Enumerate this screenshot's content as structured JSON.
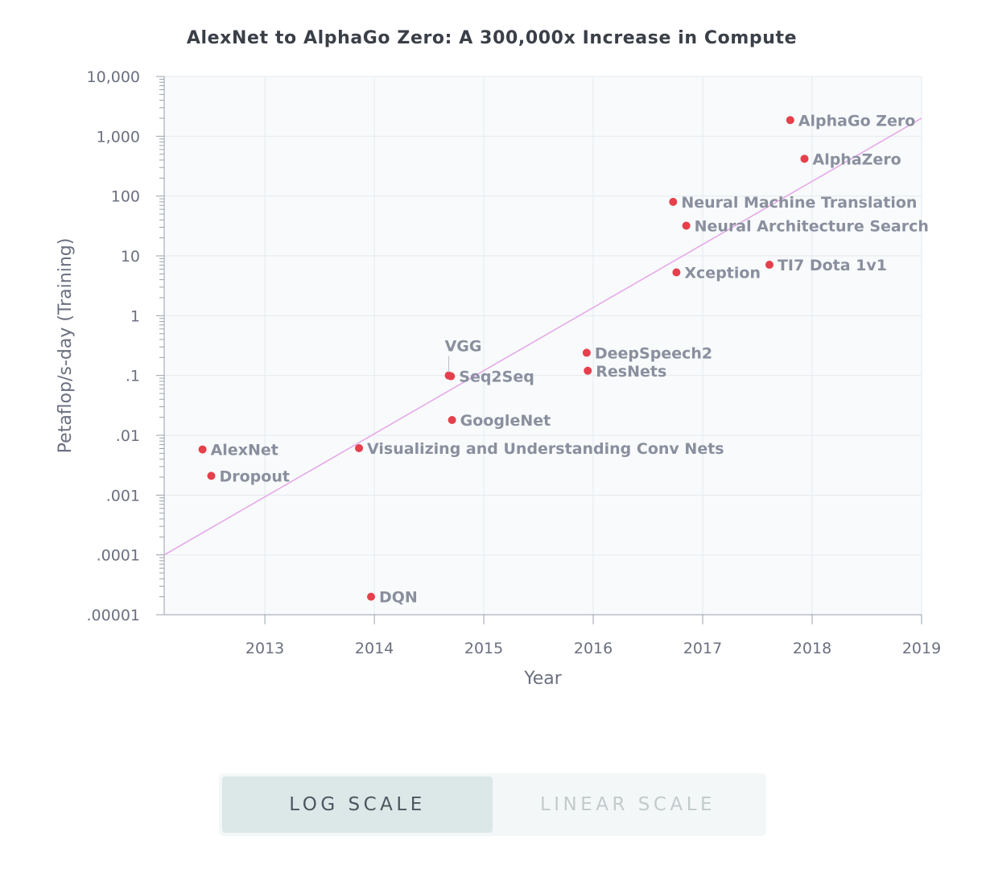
{
  "chart_data": {
    "type": "scatter",
    "title": "AlexNet to AlphaGo Zero: A 300,000x Increase in Compute",
    "xlabel": "Year",
    "ylabel": "Petaflop/s-day (Training)",
    "xlim": [
      2012.08,
      2019.0
    ],
    "ylim": [
      1e-05,
      10000
    ],
    "yscale": "log",
    "grid": true,
    "x_ticks": [
      {
        "value": 2013,
        "label": "2013"
      },
      {
        "value": 2014,
        "label": "2014"
      },
      {
        "value": 2015,
        "label": "2015"
      },
      {
        "value": 2016,
        "label": "2016"
      },
      {
        "value": 2017,
        "label": "2017"
      },
      {
        "value": 2018,
        "label": "2018"
      },
      {
        "value": 2019,
        "label": "2019"
      }
    ],
    "y_ticks": [
      {
        "value": 10000,
        "label": "10,000"
      },
      {
        "value": 1000,
        "label": "1,000"
      },
      {
        "value": 100,
        "label": "100"
      },
      {
        "value": 10,
        "label": "10"
      },
      {
        "value": 1,
        "label": "1"
      },
      {
        "value": 0.1,
        "label": ".1"
      },
      {
        "value": 0.01,
        "label": ".01"
      },
      {
        "value": 0.001,
        "label": ".001"
      },
      {
        "value": 0.0001,
        "label": ".0001"
      },
      {
        "value": 1e-05,
        "label": ".00001"
      }
    ],
    "points": [
      {
        "label": "AlexNet",
        "x": 2012.43,
        "y": 0.0058
      },
      {
        "label": "Dropout",
        "x": 2012.51,
        "y": 0.0021
      },
      {
        "label": "DQN",
        "x": 2013.97,
        "y": 2e-05
      },
      {
        "label": "Visualizing and Understanding Conv Nets",
        "x": 2013.86,
        "y": 0.0061
      },
      {
        "label": "VGG",
        "x": 2014.68,
        "y": 0.1,
        "label_pos": "above"
      },
      {
        "label": "Seq2Seq",
        "x": 2014.7,
        "y": 0.097
      },
      {
        "label": "GoogleNet",
        "x": 2014.71,
        "y": 0.018
      },
      {
        "label": "DeepSpeech2",
        "x": 2015.94,
        "y": 0.24
      },
      {
        "label": "ResNets",
        "x": 2015.95,
        "y": 0.12
      },
      {
        "label": "Xception",
        "x": 2016.76,
        "y": 5.3
      },
      {
        "label": "Neural Machine Translation",
        "x": 2016.73,
        "y": 80
      },
      {
        "label": "Neural Architecture Search",
        "x": 2016.85,
        "y": 32
      },
      {
        "label": "TI7 Dota 1v1",
        "x": 2017.61,
        "y": 7.1
      },
      {
        "label": "AlphaZero",
        "x": 2017.93,
        "y": 420
      },
      {
        "label": "AlphaGo Zero",
        "x": 2017.8,
        "y": 1860
      }
    ],
    "trendline": {
      "x": [
        2012.08,
        2019.0
      ],
      "y": [
        0.0001,
        2000
      ]
    },
    "colors": {
      "point": "#e5404c",
      "trend": "#e4a6e8",
      "plot_bg": "#f8fafb",
      "grid": "#e6ebef",
      "axis": "#9aa0ac"
    }
  },
  "controls": {
    "log_scale_label": "LOG SCALE",
    "linear_scale_label": "LINEAR SCALE",
    "selected": "log"
  }
}
